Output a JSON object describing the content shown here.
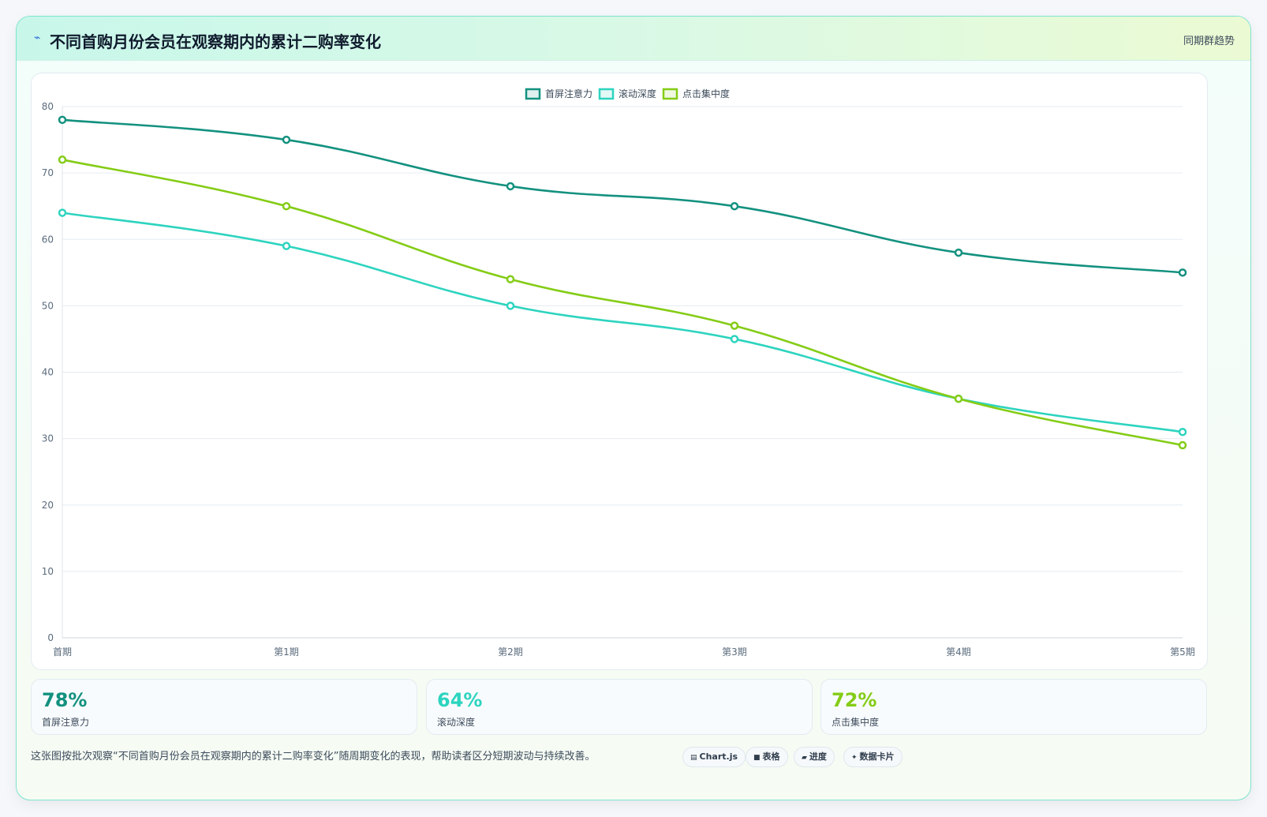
{
  "header": {
    "title_icon": "zap-icon",
    "title": "不同首购月份会员在观察期内的累计二购率变化",
    "tag": "同期群趋势"
  },
  "chart_data": {
    "type": "line",
    "categories": [
      "首期",
      "第1期",
      "第2期",
      "第3期",
      "第4期",
      "第5期"
    ],
    "series": [
      {
        "name": "首屏注意力",
        "color": "#13917f",
        "values": [
          78,
          75,
          68,
          65,
          58,
          55
        ]
      },
      {
        "name": "滚动深度",
        "color": "#2dd4bf",
        "values": [
          64,
          59,
          50,
          45,
          36,
          31
        ]
      },
      {
        "name": "点击集中度",
        "color": "#84cc16",
        "values": [
          72,
          65,
          54,
          47,
          36,
          29
        ]
      }
    ],
    "ylim": [
      0,
      80
    ],
    "yticks": [
      0,
      10,
      20,
      30,
      40,
      50,
      60,
      70,
      80
    ],
    "grid": true,
    "legend": "top-center"
  },
  "stats": [
    {
      "value": "78%",
      "label": "首屏注意力",
      "color": "#13917f"
    },
    {
      "value": "64%",
      "label": "滚动深度",
      "color": "#2dd4bf"
    },
    {
      "value": "72%",
      "label": "点击集中度",
      "color": "#84cc16"
    }
  ],
  "footer": {
    "note": "这张图按批次观察“不同首购月份会员在观察期内的累计二购率变化”随周期变化的表现，帮助读者区分短期波动与持续改善。",
    "chips": [
      {
        "icon": "chart-icon",
        "glyph": "▤",
        "label": "Chart.js"
      },
      {
        "icon": "table-icon",
        "glyph": "■",
        "label": "表格"
      },
      {
        "icon": "progress-icon",
        "glyph": "▰",
        "label": "进度"
      },
      {
        "icon": "sparkle-icon",
        "glyph": "✦",
        "label": "数据卡片"
      }
    ]
  }
}
